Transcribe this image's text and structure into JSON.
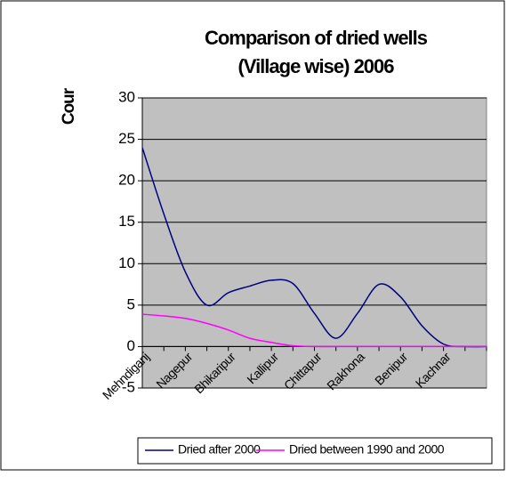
{
  "chart_data": {
    "type": "line",
    "title": [
      "Comparison of dried wells",
      "(Village wise) 2006"
    ],
    "y_label": "Cour",
    "categories": [
      "Mehndiganj",
      null,
      "Nagepur",
      null,
      "Bhikaripur",
      null,
      "Kallipur",
      null,
      "Chittapur",
      null,
      "Rakhona",
      null,
      "Benipur",
      null,
      "Kachnar",
      null,
      null
    ],
    "series": [
      {
        "name": "Dried after 2000",
        "color": "#000080",
        "values": [
          24,
          16,
          9,
          5,
          6.5,
          7.3,
          8,
          7.6,
          4,
          1,
          4,
          7.5,
          6,
          2.5,
          0.3,
          0,
          0
        ]
      },
      {
        "name": "Dried between 1990 and 2000",
        "color": "#ff00ff",
        "values": [
          3.9,
          3.7,
          3.4,
          2.8,
          2,
          1,
          0.5,
          0.1,
          0,
          0,
          0,
          0,
          0,
          0,
          0,
          0,
          0
        ]
      }
    ],
    "ylim": [
      -5,
      30
    ],
    "yticks": [
      -5,
      0,
      5,
      10,
      15,
      20,
      25,
      30
    ],
    "grid": true,
    "plot_background": "#c0c0c0",
    "legend": "bottom"
  }
}
